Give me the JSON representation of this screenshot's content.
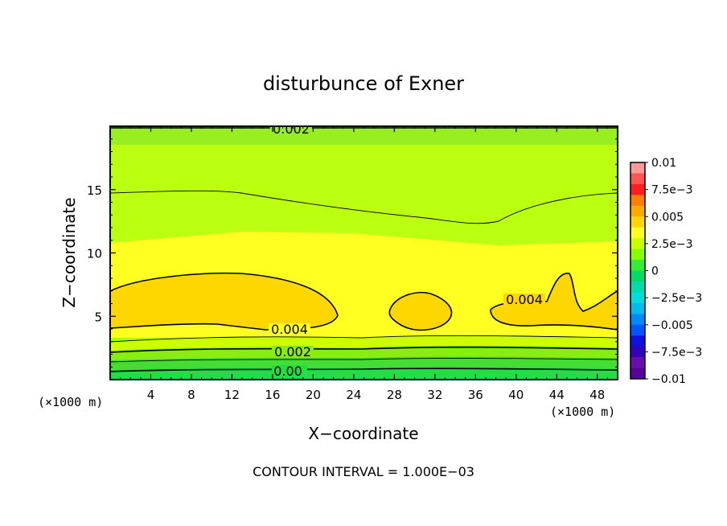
{
  "chart_data": {
    "type": "heatmap",
    "title": "disturbunce of Exner",
    "xlabel": "X−coordinate",
    "ylabel": "Z−coordinate",
    "x_unit": "(×1000 m)",
    "x_unit_right": "(×1000 m)",
    "footer": "CONTOUR INTERVAL = 1.000E−03",
    "xlim": [
      0,
      50
    ],
    "ylim": [
      0,
      20
    ],
    "x_ticks": [
      4,
      8,
      12,
      16,
      20,
      24,
      28,
      32,
      36,
      40,
      44,
      48
    ],
    "x_tick_labels": [
      "4",
      "8",
      "12",
      "16",
      "20",
      "24",
      "28",
      "32",
      "36",
      "40",
      "44",
      "48"
    ],
    "y_ticks": [
      5,
      10,
      15
    ],
    "y_tick_labels": [
      "5",
      "10",
      "15"
    ],
    "contour_interval": 0.001,
    "colorbar": {
      "range": [
        -0.01,
        0.01
      ],
      "labels": [
        "0.01",
        "7.5e−3",
        "0.005",
        "2.5e−3",
        "0",
        "−2.5e−3",
        "−0.005",
        "−7.5e−3",
        "−0.01"
      ],
      "colors_top_to_bottom": [
        "#ff9999",
        "#ff5555",
        "#ff1e1e",
        "#ff7f00",
        "#ffaa00",
        "#ffd700",
        "#ffff22",
        "#ccff00",
        "#88ff00",
        "#33ee33",
        "#00dd66",
        "#00ddaa",
        "#00dddd",
        "#00bbee",
        "#0088ff",
        "#0055ff",
        "#1111dd",
        "#3300bb",
        "#6a0dad",
        "#5a009a"
      ]
    },
    "contour_labels": [
      {
        "text": "0.002",
        "x": 18.5,
        "z": 19.6
      },
      {
        "text": "0.004",
        "x": 17.8,
        "z": 4.1
      },
      {
        "text": "0.004",
        "x": 40.7,
        "z": 5.6
      },
      {
        "text": "0.002",
        "x": 18.2,
        "z": 2.2
      },
      {
        "text": "0.00",
        "x": 17.6,
        "z": 0.7
      }
    ],
    "value_field_note": "Exner pressure disturbance: ~0.0012 near surface, rising to ~0.004-0.0045 at z≈5-8 km (three maxima near x≈8, 31, 44), decreasing to ~0.002 at the top."
  }
}
